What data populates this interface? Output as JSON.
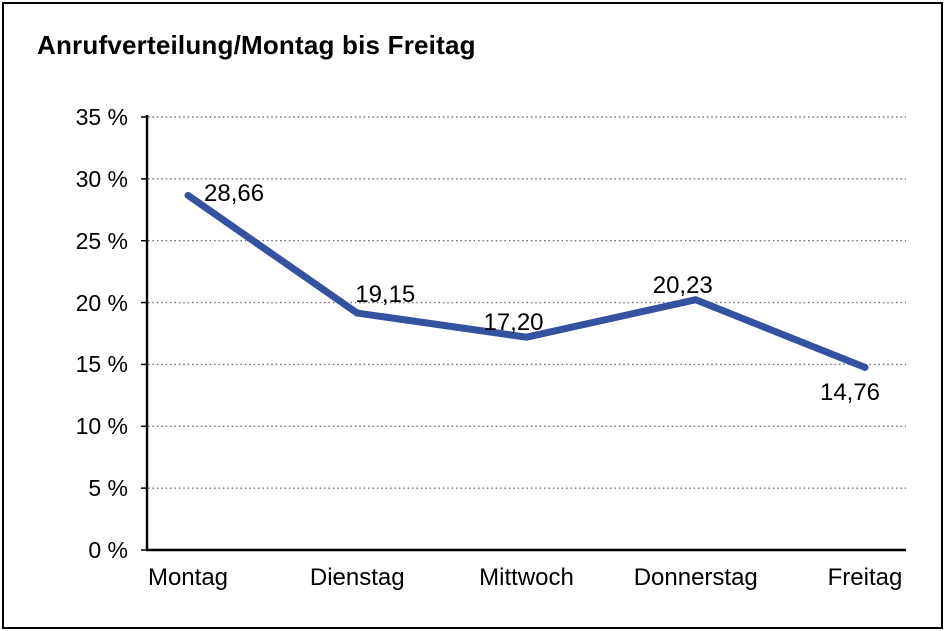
{
  "page": {
    "background": "#ffffff",
    "frame_border_color": "#000000"
  },
  "chart_data": {
    "type": "line",
    "title": "Anrufverteilung/Montag bis Freitag",
    "categories": [
      "Montag",
      "Dienstag",
      "Mittwoch",
      "Donnerstag",
      "Freitag"
    ],
    "values": [
      28.66,
      19.15,
      17.2,
      20.23,
      14.76
    ],
    "value_labels": [
      "28,66",
      "19,15",
      "17,20",
      "20,23",
      "14,76"
    ],
    "value_label_positions": [
      "right",
      "above-right",
      "above",
      "above",
      "below"
    ],
    "ylim": [
      0,
      35
    ],
    "y_ticks": [
      0,
      5,
      10,
      15,
      20,
      25,
      30,
      35
    ],
    "y_tick_labels": [
      "0 %",
      "5 %",
      "10 %",
      "15 %",
      "20 %",
      "25 %",
      "30 %",
      "35 %"
    ],
    "xlabel": "",
    "ylabel": "",
    "grid": "horizontal-dotted",
    "legend": "none",
    "line_color": "#3452a0",
    "axis_color": "#000000",
    "gridline_color": "#777777",
    "text_color": "#000000"
  }
}
